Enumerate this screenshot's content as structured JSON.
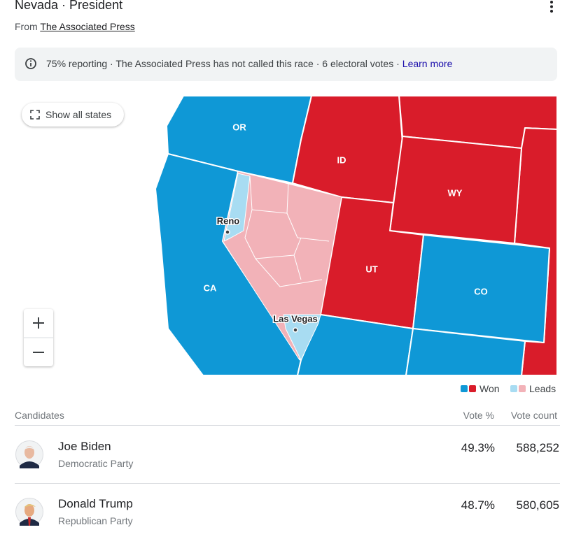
{
  "header": {
    "title": "Nevada · President",
    "source_prefix": "From",
    "source": "The Associated Press"
  },
  "status": {
    "text": "75% reporting · The Associated Press has not called this race · 6 electoral votes ·",
    "link": "Learn more"
  },
  "map": {
    "button": "Show all states",
    "states": [
      "OR",
      "ID",
      "WY",
      "CA",
      "UT",
      "CO"
    ],
    "cities": [
      "Reno",
      "Las Vegas"
    ],
    "legend": [
      "Won",
      "Leads"
    ]
  },
  "table": {
    "columns": [
      "Candidates",
      "Vote %",
      "Vote count"
    ],
    "rows": [
      {
        "name": "Joe Biden",
        "party": "Democratic Party",
        "vote_pct": "49.3%",
        "vote_count": "588,252"
      },
      {
        "name": "Donald Trump",
        "party": "Republican Party",
        "vote_pct": "48.7%",
        "vote_count": "580,605"
      }
    ]
  }
}
